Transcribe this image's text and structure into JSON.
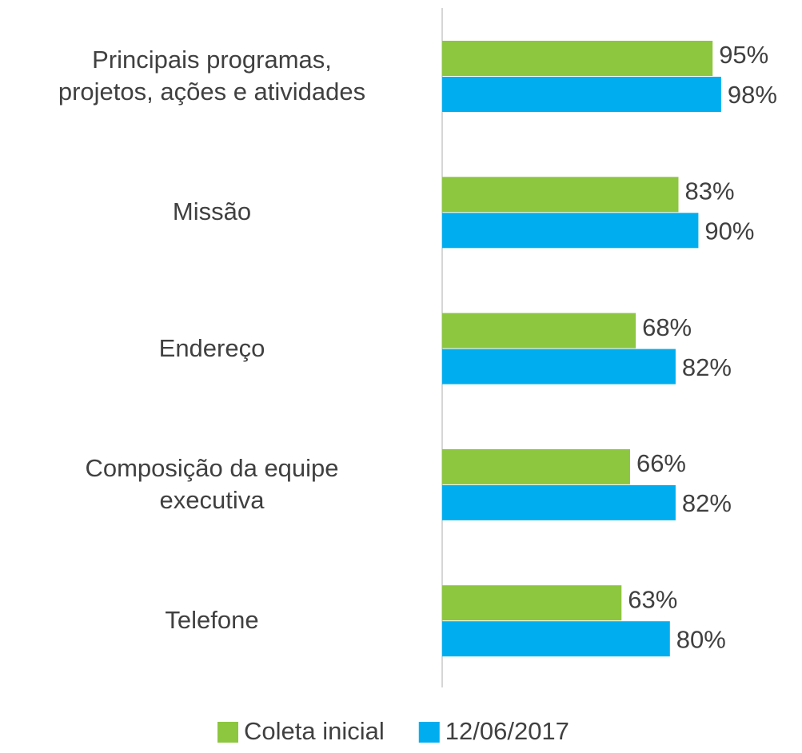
{
  "chart_data": {
    "type": "barh",
    "categories": [
      "Principais programas,\nprojetos, ações e atividades",
      "Missão",
      "Endereço",
      "Composição da equipe\nexecutiva",
      "Telefone"
    ],
    "series": [
      {
        "name": "Coleta inicial",
        "color": "#8dc63f",
        "values": [
          95,
          83,
          68,
          66,
          63
        ],
        "value_labels": [
          "95%",
          "83%",
          "68%",
          "66%",
          "63%"
        ]
      },
      {
        "name": "12/06/2017",
        "color": "#00aeef",
        "values": [
          98,
          90,
          82,
          82,
          80
        ],
        "value_labels": [
          "98%",
          "90%",
          "82%",
          "82%",
          "80%"
        ]
      }
    ],
    "legend": "bottom"
  }
}
